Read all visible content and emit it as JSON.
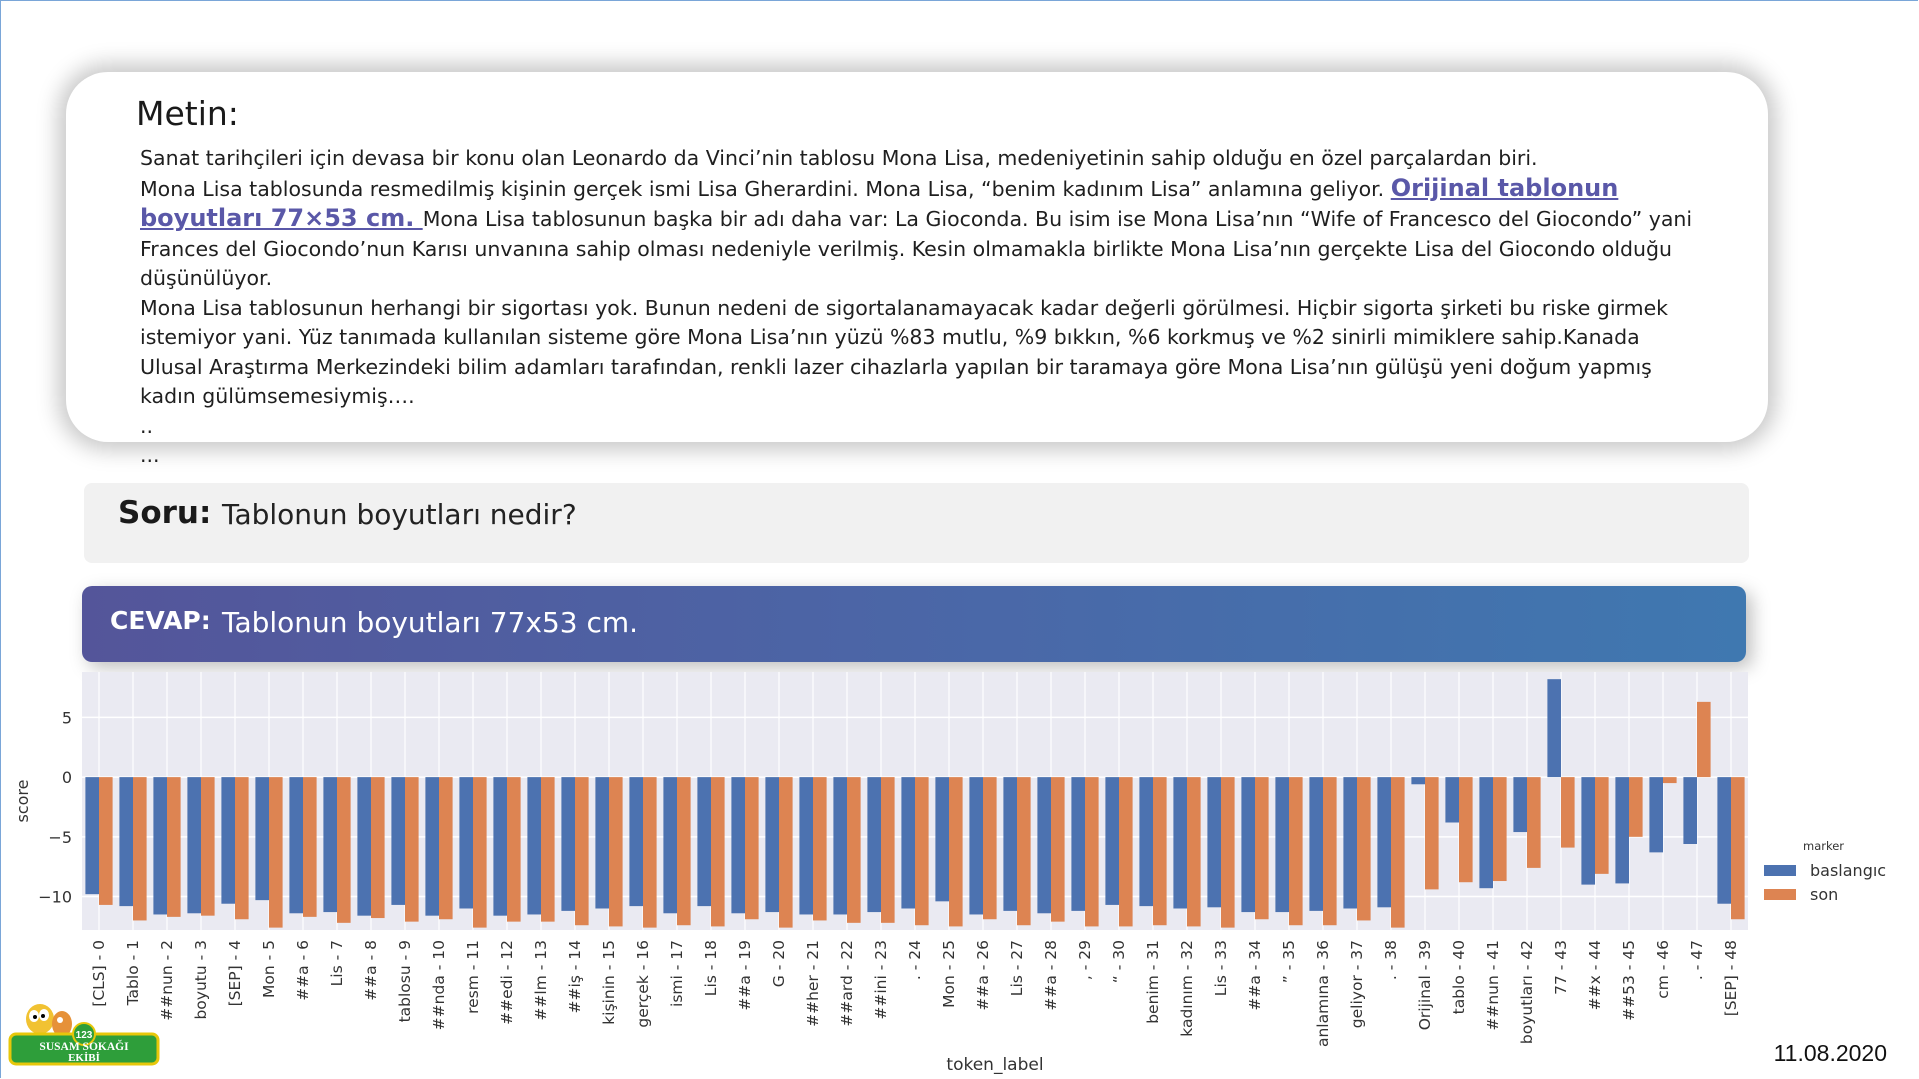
{
  "metin": {
    "title": "Metin:",
    "p1": "Sanat tarihçileri için devasa bir konu olan Leonardo da Vinci’nin tablosu Mona Lisa, medeniyetinin sahip olduğu en özel parçalardan biri.",
    "p2a": "Mona Lisa tablosunda resmedilmiş kişinin gerçek ismi Lisa Gherardini. Mona Lisa, “benim kadınım Lisa” anlamına geliyor. ",
    "p2_highlight": "Orijinal tablonun boyutları 77×53 cm. ",
    "p2b": "Mona Lisa tablosunun başka bir adı daha var: La Gioconda. Bu isim ise Mona Lisa’nın “Wife of Francesco del Giocondo” yani Frances del Giocondo’nun Karısı unvanına sahip olması nedeniyle verilmiş. Kesin olmamakla birlikte Mona Lisa’nın gerçekte Lisa del Giocondo olduğu düşünülüyor.",
    "p3": "Mona Lisa tablosunun herhangi bir sigortası yok. Bunun nedeni de sigortalanamayacak kadar değerli görülmesi. Hiçbir sigorta şirketi bu riske girmek istemiyor yani.  Yüz tanımada kullanılan sisteme göre Mona Lisa’nın yüzü %83 mutlu, %9 bıkkın, %6 korkmuş ve %2 sinirli mimiklere sahip.Kanada Ulusal Araştırma Merkezindeki bilim adamları tarafından, renkli lazer cihazlarla yapılan bir taramaya göre Mona Lisa’nın gülüşü yeni doğum yapmış kadın gülümsemesiymiş….",
    "dots1": "..",
    "dots2": "..."
  },
  "soru": {
    "label": "Soru:",
    "text": "Tablonun boyutları nedir?"
  },
  "cevap": {
    "label": "CEVAP:",
    "text": "Tablonun boyutları 77x53 cm."
  },
  "logo": {
    "number": "123",
    "line1": "SUSAM SOKAĞI",
    "line2": "EKİBİ"
  },
  "date": "11.08.2020",
  "colors": {
    "baslangic": "#4c72b0",
    "son": "#dd8452",
    "plot_bg": "#eaeaf2"
  },
  "chart_data": {
    "type": "bar",
    "xlabel": "token_label",
    "ylabel": "score",
    "ylim": [
      -12.8,
      8.8
    ],
    "yticks": [
      5,
      0,
      -5,
      -10
    ],
    "legend_title": "marker",
    "legend_position": "right",
    "grid": true,
    "categories": [
      "[CLS] - 0",
      "Tablo - 1",
      "##nun - 2",
      "boyutu - 3",
      "[SEP] - 4",
      "Mon - 5",
      "##a - 6",
      "Lis - 7",
      "##a - 8",
      "tablosu - 9",
      "##nda - 10",
      "resm - 11",
      "##edi - 12",
      "##lm - 13",
      "##iş - 14",
      "kişinin - 15",
      "gerçek - 16",
      "ismi - 17",
      "Lis - 18",
      "##a - 19",
      "G - 20",
      "##her - 21",
      "##ard - 22",
      "##ini - 23",
      ". - 24",
      "Mon - 25",
      "##a - 26",
      "Lis - 27",
      "##a - 28",
      ", - 29",
      "“ - 30",
      "benim - 31",
      "kadınım - 32",
      "Lis - 33",
      "##a - 34",
      "” - 35",
      "anlamına - 36",
      "geliyor - 37",
      ". - 38",
      "Orijinal - 39",
      "tablo - 40",
      "##nun - 41",
      "boyutları - 42",
      "77 - 43",
      "##x - 44",
      "##53 - 45",
      "cm - 46",
      ". - 47",
      "[SEP] - 48"
    ],
    "series": [
      {
        "name": "baslangıc",
        "values": [
          -9.8,
          -10.8,
          -11.5,
          -11.4,
          -10.6,
          -10.3,
          -11.4,
          -11.3,
          -11.6,
          -10.7,
          -11.6,
          -11.0,
          -11.6,
          -11.5,
          -11.2,
          -11.0,
          -10.8,
          -11.4,
          -10.8,
          -11.4,
          -11.3,
          -11.5,
          -11.5,
          -11.3,
          -11.0,
          -10.4,
          -11.5,
          -11.2,
          -11.4,
          -11.2,
          -10.7,
          -10.8,
          -11.0,
          -10.9,
          -11.3,
          -11.3,
          -11.2,
          -11.0,
          -10.9,
          -0.6,
          -3.8,
          -9.3,
          -4.6,
          8.2,
          -9.0,
          -8.9,
          -6.3,
          -5.6,
          -10.6
        ]
      },
      {
        "name": "son",
        "values": [
          -10.7,
          -12.0,
          -11.7,
          -11.6,
          -11.9,
          -12.6,
          -11.7,
          -12.2,
          -11.8,
          -12.1,
          -11.9,
          -12.6,
          -12.1,
          -12.1,
          -12.4,
          -12.5,
          -12.6,
          -12.4,
          -12.5,
          -11.9,
          -12.6,
          -12.0,
          -12.2,
          -12.2,
          -12.4,
          -12.5,
          -11.9,
          -12.4,
          -12.1,
          -12.5,
          -12.5,
          -12.4,
          -12.5,
          -12.6,
          -11.9,
          -12.4,
          -12.4,
          -12.0,
          -12.6,
          -9.4,
          -8.8,
          -8.7,
          -7.6,
          -5.9,
          -8.1,
          -5.0,
          -0.5,
          6.3,
          -11.9
        ]
      }
    ]
  }
}
